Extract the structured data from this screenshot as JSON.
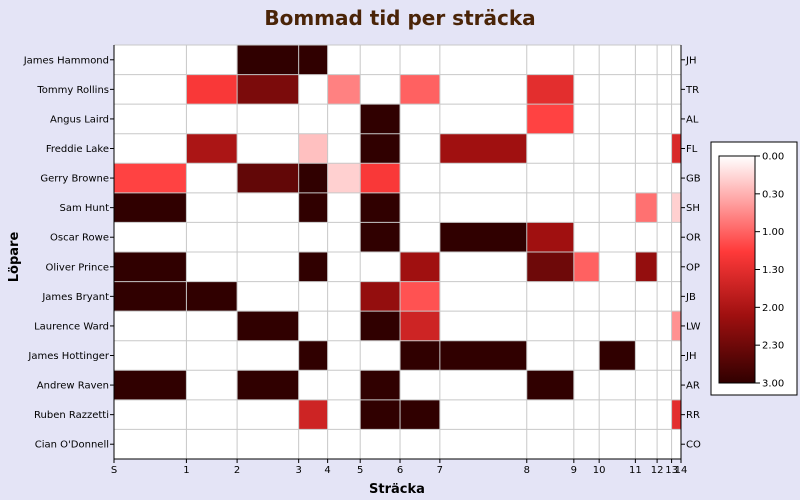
{
  "chart_data": {
    "type": "heatmap",
    "title": "Bommad tid per sträcka",
    "xlabel": "Sträcka",
    "ylabel": "Löpare",
    "x_ticks": [
      "S",
      "1",
      "2",
      "3",
      "4",
      "5",
      "6",
      "7",
      "8",
      "9",
      "10",
      "11",
      "12",
      "13",
      "14"
    ],
    "x_boundaries": [
      0,
      1,
      1.7,
      2.55,
      2.95,
      3.4,
      3.95,
      4.5,
      5.7,
      6.35,
      6.7,
      7.2,
      7.5,
      7.7,
      7.83
    ],
    "rows": [
      {
        "name": "James Hammond",
        "abbr": "JH",
        "values": [
          0,
          0,
          3,
          3,
          0,
          0,
          0,
          0,
          0,
          0,
          0,
          0,
          0,
          0
        ]
      },
      {
        "name": "Tommy Rollins",
        "abbr": "TR",
        "values": [
          0,
          1.3,
          2.4,
          0,
          0.8,
          0,
          1.0,
          0,
          1.5,
          0,
          0,
          0,
          0,
          0
        ]
      },
      {
        "name": "Angus Laird",
        "abbr": "AL",
        "values": [
          0,
          0,
          0,
          0,
          0,
          3,
          0,
          0,
          1.2,
          0,
          0,
          0,
          0,
          0
        ]
      },
      {
        "name": "Freddie Lake",
        "abbr": "FL",
        "values": [
          0,
          2.0,
          0,
          0.4,
          0,
          3,
          0,
          2.1,
          0,
          0,
          0,
          0,
          0,
          1.6
        ]
      },
      {
        "name": "Gerry Browne",
        "abbr": "GB",
        "values": [
          1.2,
          0,
          2.6,
          3,
          0.3,
          1.3,
          0,
          0,
          0,
          0,
          0,
          0,
          0,
          0
        ]
      },
      {
        "name": "Sam Hunt",
        "abbr": "SH",
        "values": [
          3,
          0,
          0,
          3,
          0,
          3,
          0,
          0,
          0,
          0,
          0,
          0.9,
          0,
          0.3
        ]
      },
      {
        "name": "Oscar Rowe",
        "abbr": "OR",
        "values": [
          0,
          0,
          0,
          0,
          0,
          3,
          0,
          3,
          2.1,
          0,
          0,
          0,
          0,
          0
        ]
      },
      {
        "name": "Oliver Prince",
        "abbr": "OP",
        "values": [
          3,
          0,
          0,
          3,
          0,
          0,
          2.1,
          0,
          2.5,
          1.0,
          0,
          2.2,
          0,
          0
        ]
      },
      {
        "name": "James Bryant",
        "abbr": "JB",
        "values": [
          3,
          3,
          0,
          0,
          0,
          2.2,
          1.1,
          0,
          0,
          0,
          0,
          0,
          0,
          0
        ]
      },
      {
        "name": "Laurence Ward",
        "abbr": "LW",
        "values": [
          0,
          0,
          3,
          0,
          0,
          3,
          1.7,
          0,
          0,
          0,
          0,
          0,
          0,
          0.7
        ]
      },
      {
        "name": "James Hottinger",
        "abbr": "JH",
        "values": [
          0,
          0,
          0,
          3,
          0,
          0,
          3,
          3,
          0,
          0,
          3,
          0,
          0,
          0
        ]
      },
      {
        "name": "Andrew Raven",
        "abbr": "AR",
        "values": [
          3,
          0,
          3,
          0,
          0,
          3,
          0,
          0,
          3,
          0,
          0,
          0,
          0,
          0
        ]
      },
      {
        "name": "Ruben Razzetti",
        "abbr": "RR",
        "values": [
          0,
          0,
          0,
          1.7,
          0,
          3,
          3,
          0,
          0,
          0,
          0,
          0,
          0,
          1.5
        ]
      },
      {
        "name": "Cian O'Donnell",
        "abbr": "CO",
        "values": [
          0,
          0,
          0,
          0,
          0,
          0,
          0,
          0,
          0,
          0,
          0,
          0,
          0,
          0
        ]
      }
    ],
    "colorbar": {
      "ticks": [
        "0.00",
        "0.30",
        "1.00",
        "1.30",
        "2.00",
        "2.30",
        "3.00"
      ],
      "range": [
        0,
        3
      ]
    },
    "grid": true
  }
}
